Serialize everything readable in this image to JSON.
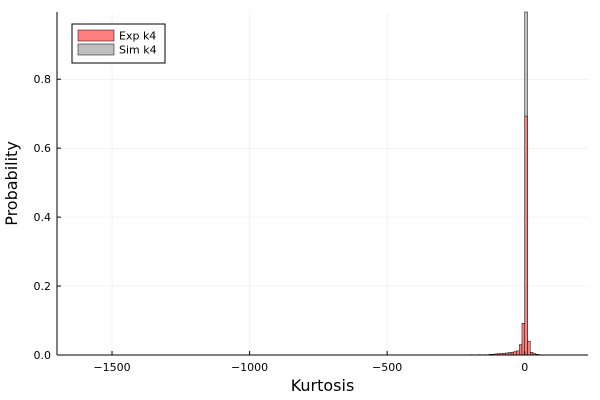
{
  "chart_data": {
    "type": "bar",
    "title": "",
    "xlabel": "Kurtosis",
    "ylabel": "Probability",
    "xlim": [
      -1700,
      230
    ],
    "ylim": [
      0,
      0.995
    ],
    "xticks": [
      -1500,
      -1000,
      -500,
      0
    ],
    "xtick_labels": [
      "−1500",
      "−1000",
      "−500",
      "0"
    ],
    "yticks": [
      0.0,
      0.2,
      0.4,
      0.6,
      0.8
    ],
    "ytick_labels": [
      "0.0",
      "0.2",
      "0.4",
      "0.6",
      "0.8"
    ],
    "grid": true,
    "legend_position": "top-left",
    "series": [
      {
        "name": "Exp k4",
        "color": "#ff7f7f",
        "bins": [
          {
            "x0": -200,
            "x1": -190,
            "value": 0.001
          },
          {
            "x0": -170,
            "x1": -160,
            "value": 0.001
          },
          {
            "x0": -150,
            "x1": -140,
            "value": 0.001
          },
          {
            "x0": -130,
            "x1": -120,
            "value": 0.002
          },
          {
            "x0": -120,
            "x1": -110,
            "value": 0.002
          },
          {
            "x0": -110,
            "x1": -100,
            "value": 0.003
          },
          {
            "x0": -100,
            "x1": -90,
            "value": 0.004
          },
          {
            "x0": -90,
            "x1": -80,
            "value": 0.004
          },
          {
            "x0": -80,
            "x1": -70,
            "value": 0.005
          },
          {
            "x0": -70,
            "x1": -60,
            "value": 0.006
          },
          {
            "x0": -60,
            "x1": -50,
            "value": 0.007
          },
          {
            "x0": -50,
            "x1": -40,
            "value": 0.008
          },
          {
            "x0": -40,
            "x1": -30,
            "value": 0.01
          },
          {
            "x0": -30,
            "x1": -20,
            "value": 0.012
          },
          {
            "x0": -20,
            "x1": -10,
            "value": 0.03
          },
          {
            "x0": -10,
            "x1": 0,
            "value": 0.092
          },
          {
            "x0": 0,
            "x1": 10,
            "value": 0.693
          },
          {
            "x0": 10,
            "x1": 20,
            "value": 0.04
          },
          {
            "x0": 20,
            "x1": 30,
            "value": 0.008
          },
          {
            "x0": 30,
            "x1": 40,
            "value": 0.004
          },
          {
            "x0": 40,
            "x1": 50,
            "value": 0.002
          },
          {
            "x0": 50,
            "x1": 60,
            "value": 0.001
          }
        ]
      },
      {
        "name": "Sim k4",
        "color": "#bfbfbf",
        "bins": [
          {
            "x0": 0,
            "x1": 10,
            "value": 0.995
          }
        ]
      }
    ]
  }
}
